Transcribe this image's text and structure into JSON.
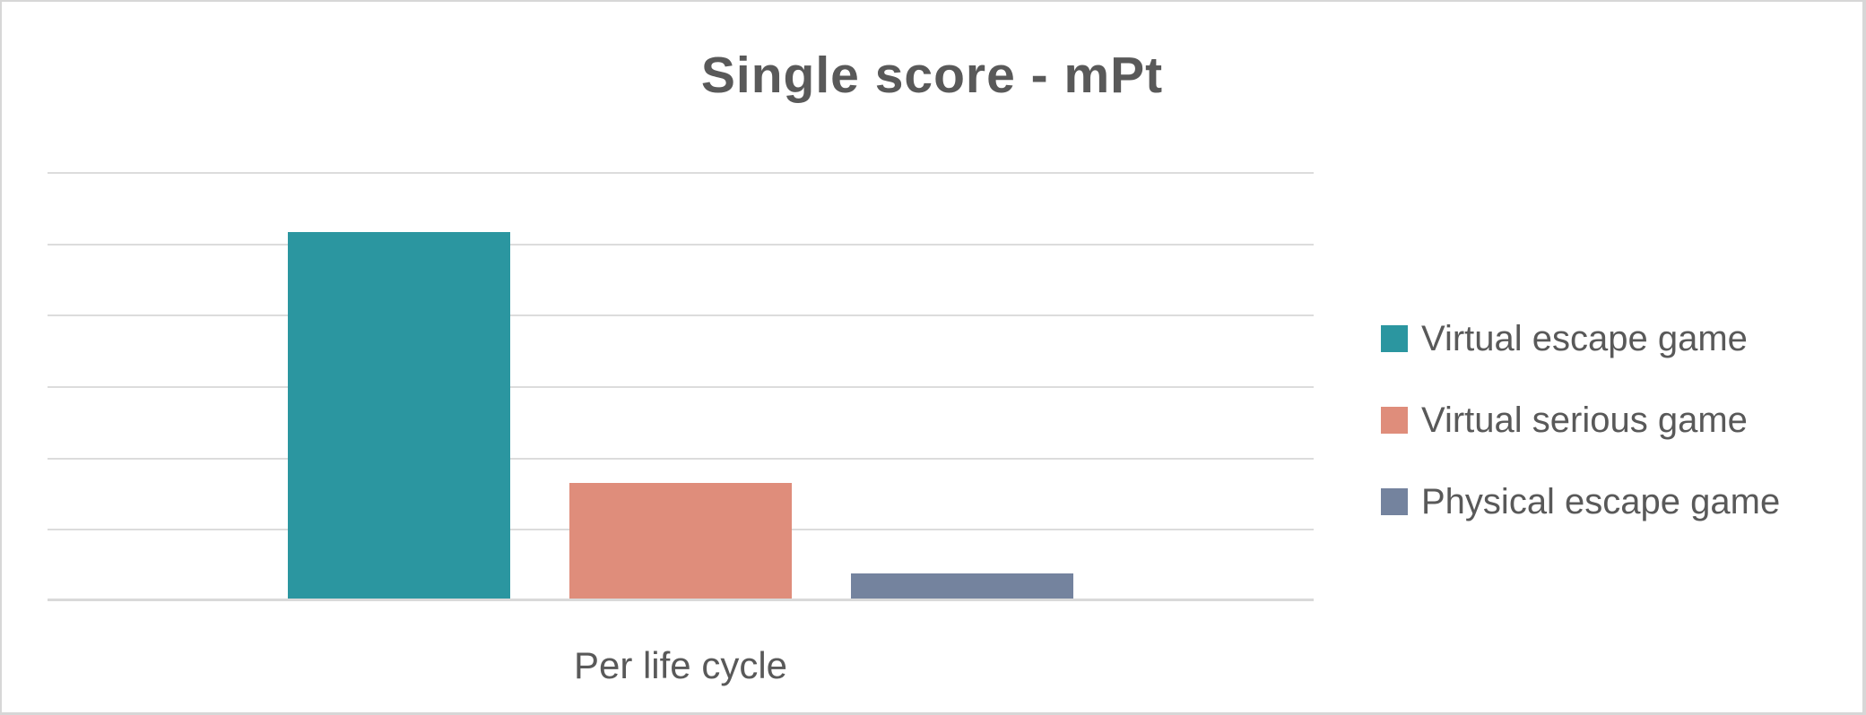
{
  "chart_data": {
    "type": "bar",
    "title": "Single score - mPt",
    "categories": [
      "Per life cycle"
    ],
    "series": [
      {
        "name": "Virtual escape game",
        "values": [
          5.17
        ],
        "color": "#2b96a0"
      },
      {
        "name": "Virtual serious game",
        "values": [
          1.63
        ],
        "color": "#df8d7b"
      },
      {
        "name": "Physical escape game",
        "values": [
          0.36
        ],
        "color": "#74839e"
      }
    ],
    "xlabel": "",
    "ylabel": "",
    "ylim": [
      0,
      6
    ],
    "y_gridline_interval": 1,
    "y_axis_labels_visible": false,
    "x_axis_labels_visible": true,
    "grid": "horizontal",
    "legend_position": "right",
    "legend_marker": "square",
    "note": "No numeric y-axis tick labels are shown in the chart; values are expressed in gridline units (one unit per horizontal gridline interval)."
  },
  "colors": {
    "title_text": "#595959",
    "label_text": "#595959",
    "gridline": "#dcdcdc",
    "axis_line": "#d9d9d9",
    "frame_border": "#d7d7d7",
    "background": "#ffffff"
  }
}
